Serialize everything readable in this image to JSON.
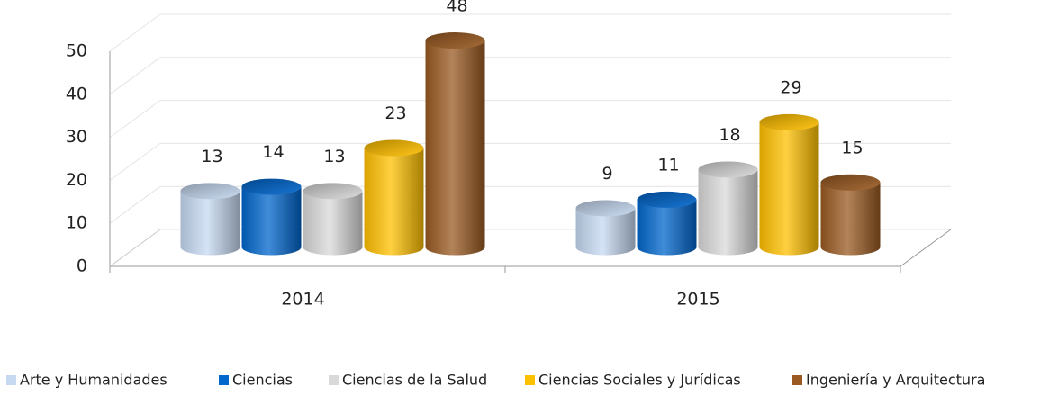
{
  "chart_data": {
    "type": "bar",
    "categories": [
      "2014",
      "2015"
    ],
    "series": [
      {
        "name": "Arte y Humanidades",
        "color": "#c6d9f1",
        "values": [
          13,
          9
        ]
      },
      {
        "name": "Ciencias",
        "color": "#0066cc",
        "values": [
          14,
          11
        ]
      },
      {
        "name": "Ciencias de la Salud",
        "color": "#d9d9d9",
        "values": [
          13,
          18
        ]
      },
      {
        "name": "Ciencias Sociales y Jurídicas",
        "color": "#ffc000",
        "values": [
          23,
          29
        ]
      },
      {
        "name": "Ingeniería y Arquitectura",
        "color": "#9a5a22",
        "values": [
          48,
          15
        ]
      }
    ],
    "ylim": [
      0,
      50
    ],
    "yticks": [
      0,
      10,
      20,
      30,
      40,
      50
    ],
    "grid": true,
    "legend": "bottom"
  }
}
